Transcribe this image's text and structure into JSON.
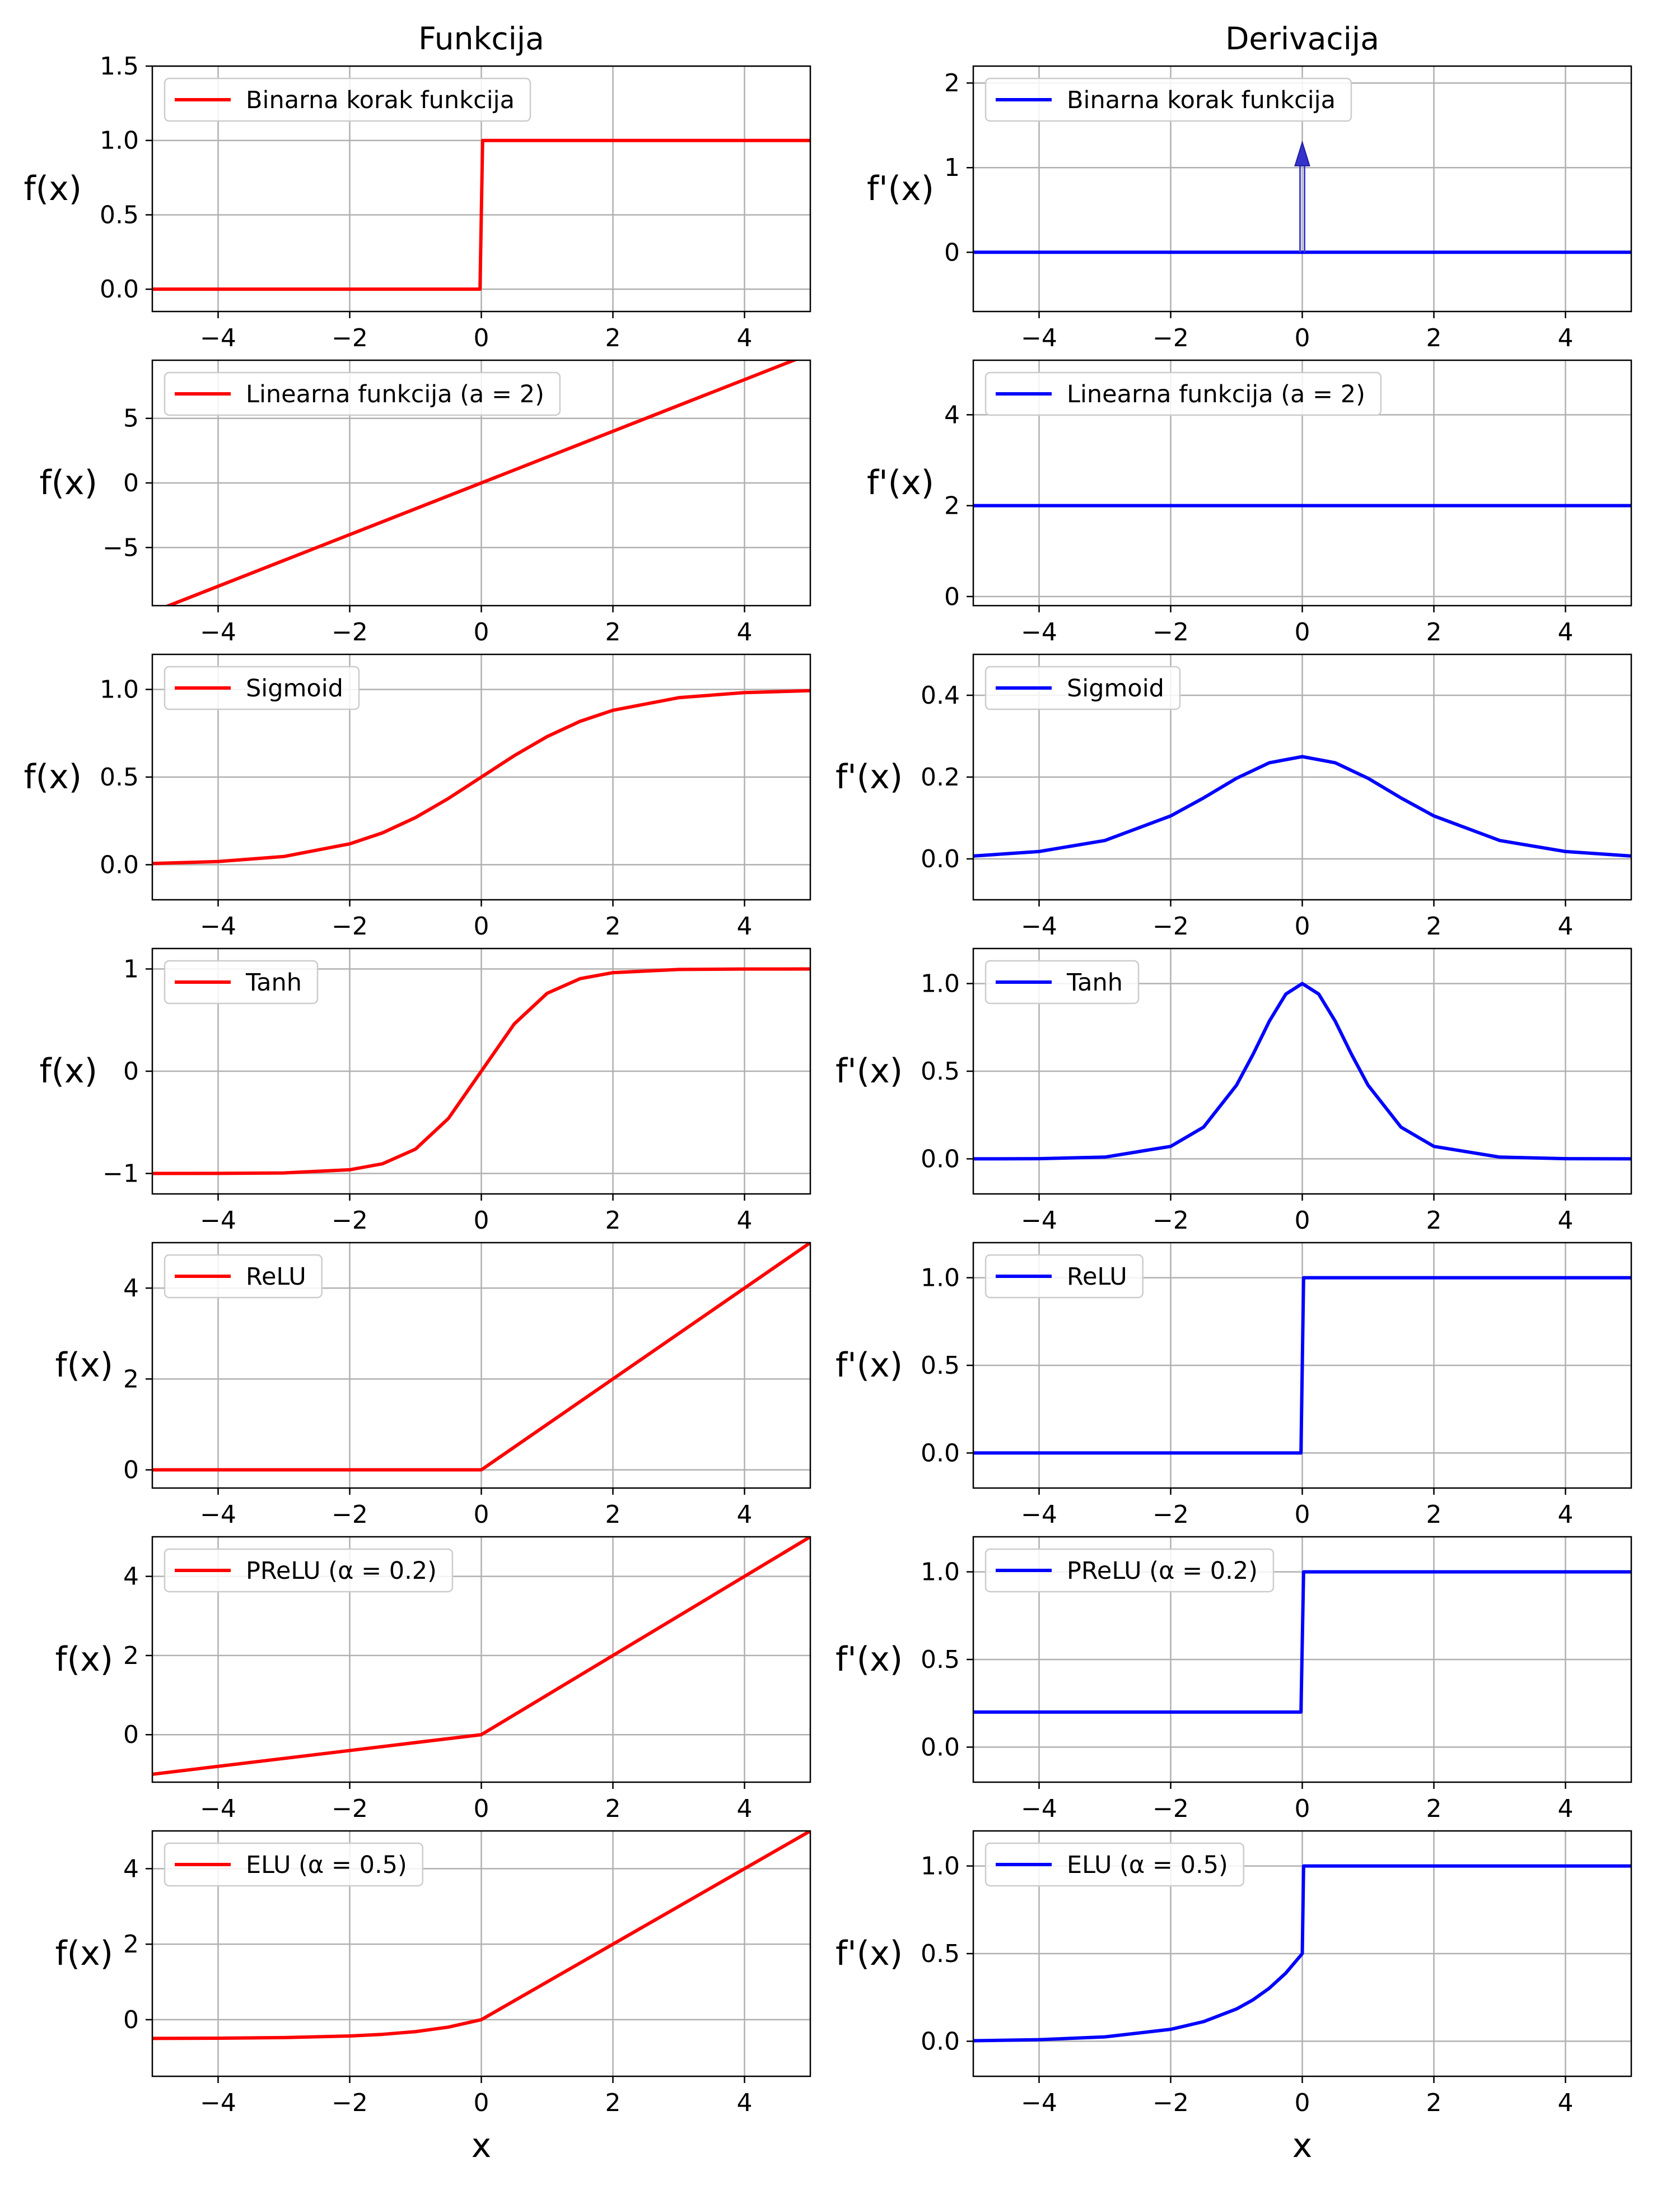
{
  "column_titles": [
    "Funkcija",
    "Derivacija"
  ],
  "ylabels": [
    "f(x)",
    "f'(x)"
  ],
  "xlabel": "x",
  "colors": {
    "function": "#ff0000",
    "derivative": "#0000ff",
    "grid": "#b0b0b0"
  },
  "chart_data": [
    {
      "type": "line",
      "column": "Funkcija",
      "name": "Binarna korak funkcija",
      "xlim": [
        -5,
        5
      ],
      "ylim": [
        -0.15,
        1.5
      ],
      "yticks": [
        0.0,
        0.5,
        1.0,
        1.5
      ],
      "ytick_labels": [
        "0.0",
        "0.5",
        "1.0",
        "1.5"
      ],
      "grid": true,
      "legend": "upper left",
      "series": [
        {
          "name": "Binarna korak funkcija",
          "x": [
            -5,
            -0.02,
            0.02,
            5
          ],
          "y": [
            0,
            0,
            1,
            1
          ]
        }
      ]
    },
    {
      "type": "line",
      "column": "Derivacija",
      "name": "Binarna korak funkcija",
      "xlim": [
        -5,
        5
      ],
      "ylim": [
        -0.7,
        2.2
      ],
      "yticks": [
        0,
        1,
        2
      ],
      "ytick_labels": [
        "0",
        "1",
        "2"
      ],
      "grid": true,
      "legend": "upper left",
      "arrow": {
        "x": 0,
        "from": 0,
        "to": 1.3
      },
      "series": [
        {
          "name": "Binarna korak funkcija",
          "x": [
            -5,
            5
          ],
          "y": [
            0,
            0
          ]
        }
      ]
    },
    {
      "type": "line",
      "column": "Funkcija",
      "name": "Linearna funkcija (a = 2)",
      "xlim": [
        -5,
        5
      ],
      "ylim": [
        -9.5,
        9.5
      ],
      "yticks": [
        -5,
        0,
        5
      ],
      "ytick_labels": [
        "−5",
        "0",
        "5"
      ],
      "grid": true,
      "legend": "upper left",
      "series": [
        {
          "name": "Linearna funkcija (a = 2)",
          "x": [
            -5,
            5
          ],
          "y": [
            -10,
            10
          ]
        }
      ]
    },
    {
      "type": "line",
      "column": "Derivacija",
      "name": "Linearna funkcija (a = 2)",
      "xlim": [
        -5,
        5
      ],
      "ylim": [
        -0.2,
        5.2
      ],
      "yticks": [
        0,
        2,
        4
      ],
      "ytick_labels": [
        "0",
        "2",
        "4"
      ],
      "grid": true,
      "legend": "upper left",
      "series": [
        {
          "name": "Linearna funkcija (a = 2)",
          "x": [
            -5,
            5
          ],
          "y": [
            2,
            2
          ]
        }
      ]
    },
    {
      "type": "line",
      "column": "Funkcija",
      "name": "Sigmoid",
      "xlim": [
        -5,
        5
      ],
      "ylim": [
        -0.2,
        1.2
      ],
      "yticks": [
        0.0,
        0.5,
        1.0
      ],
      "ytick_labels": [
        "0.0",
        "0.5",
        "1.0"
      ],
      "grid": true,
      "legend": "upper left",
      "series": [
        {
          "name": "Sigmoid",
          "x": [
            -5,
            -4,
            -3,
            -2,
            -1.5,
            -1,
            -0.5,
            0,
            0.5,
            1,
            1.5,
            2,
            3,
            4,
            5
          ],
          "y": [
            0.007,
            0.018,
            0.047,
            0.119,
            0.182,
            0.269,
            0.378,
            0.5,
            0.622,
            0.731,
            0.818,
            0.881,
            0.953,
            0.982,
            0.993
          ]
        }
      ]
    },
    {
      "type": "line",
      "column": "Derivacija",
      "name": "Sigmoid",
      "xlim": [
        -5,
        5
      ],
      "ylim": [
        -0.1,
        0.5
      ],
      "yticks": [
        0.0,
        0.2,
        0.4
      ],
      "ytick_labels": [
        "0.0",
        "0.2",
        "0.4"
      ],
      "grid": true,
      "legend": "upper left",
      "series": [
        {
          "name": "Sigmoid",
          "x": [
            -5,
            -4,
            -3,
            -2,
            -1.5,
            -1,
            -0.5,
            0,
            0.5,
            1,
            1.5,
            2,
            3,
            4,
            5
          ],
          "y": [
            0.007,
            0.018,
            0.045,
            0.105,
            0.149,
            0.197,
            0.235,
            0.25,
            0.235,
            0.197,
            0.149,
            0.105,
            0.045,
            0.018,
            0.007
          ]
        }
      ]
    },
    {
      "type": "line",
      "column": "Funkcija",
      "name": "Tanh",
      "xlim": [
        -5,
        5
      ],
      "ylim": [
        -1.2,
        1.2
      ],
      "yticks": [
        -1,
        0,
        1
      ],
      "ytick_labels": [
        "−1",
        "0",
        "1"
      ],
      "grid": true,
      "legend": "upper left",
      "series": [
        {
          "name": "Tanh",
          "x": [
            -5,
            -4,
            -3,
            -2,
            -1.5,
            -1,
            -0.5,
            0,
            0.5,
            1,
            1.5,
            2,
            3,
            4,
            5
          ],
          "y": [
            -1.0,
            -0.999,
            -0.995,
            -0.964,
            -0.905,
            -0.762,
            -0.462,
            0,
            0.462,
            0.762,
            0.905,
            0.964,
            0.995,
            0.999,
            1.0
          ]
        }
      ]
    },
    {
      "type": "line",
      "column": "Derivacija",
      "name": "Tanh",
      "xlim": [
        -5,
        5
      ],
      "ylim": [
        -0.2,
        1.2
      ],
      "yticks": [
        0.0,
        0.5,
        1.0
      ],
      "ytick_labels": [
        "0.0",
        "0.5",
        "1.0"
      ],
      "grid": true,
      "legend": "upper left",
      "series": [
        {
          "name": "Tanh",
          "x": [
            -5,
            -4,
            -3,
            -2,
            -1.5,
            -1,
            -0.75,
            -0.5,
            -0.25,
            0,
            0.25,
            0.5,
            0.75,
            1,
            1.5,
            2,
            3,
            4,
            5
          ],
          "y": [
            0.0,
            0.001,
            0.01,
            0.071,
            0.181,
            0.42,
            0.595,
            0.786,
            0.94,
            1.0,
            0.94,
            0.786,
            0.595,
            0.42,
            0.181,
            0.071,
            0.01,
            0.001,
            0.0
          ]
        }
      ]
    },
    {
      "type": "line",
      "column": "Funkcija",
      "name": "ReLU",
      "xlim": [
        -5,
        5
      ],
      "ylim": [
        -0.4,
        5.0
      ],
      "yticks": [
        0,
        2,
        4
      ],
      "ytick_labels": [
        "0",
        "2",
        "4"
      ],
      "grid": true,
      "legend": "upper left",
      "series": [
        {
          "name": "ReLU",
          "x": [
            -5,
            0,
            5
          ],
          "y": [
            0,
            0,
            5
          ]
        }
      ]
    },
    {
      "type": "line",
      "column": "Derivacija",
      "name": "ReLU",
      "xlim": [
        -5,
        5
      ],
      "ylim": [
        -0.2,
        1.2
      ],
      "yticks": [
        0.0,
        0.5,
        1.0
      ],
      "ytick_labels": [
        "0.0",
        "0.5",
        "1.0"
      ],
      "grid": true,
      "legend": "upper left",
      "series": [
        {
          "name": "ReLU",
          "x": [
            -5,
            -0.02,
            0.02,
            5
          ],
          "y": [
            0,
            0,
            1,
            1
          ]
        }
      ]
    },
    {
      "type": "line",
      "column": "Funkcija",
      "name": "PReLU (α = 0.2)",
      "xlim": [
        -5,
        5
      ],
      "ylim": [
        -1.2,
        5.0
      ],
      "yticks": [
        0,
        2,
        4
      ],
      "ytick_labels": [
        "0",
        "2",
        "4"
      ],
      "grid": true,
      "legend": "upper left",
      "series": [
        {
          "name": "PReLU (α = 0.2)",
          "x": [
            -5,
            0,
            5
          ],
          "y": [
            -1,
            0,
            5
          ]
        }
      ]
    },
    {
      "type": "line",
      "column": "Derivacija",
      "name": "PReLU (α = 0.2)",
      "xlim": [
        -5,
        5
      ],
      "ylim": [
        -0.2,
        1.2
      ],
      "yticks": [
        0.0,
        0.5,
        1.0
      ],
      "ytick_labels": [
        "0.0",
        "0.5",
        "1.0"
      ],
      "grid": true,
      "legend": "upper left",
      "series": [
        {
          "name": "PReLU (α = 0.2)",
          "x": [
            -5,
            -0.02,
            0.02,
            5
          ],
          "y": [
            0.2,
            0.2,
            1,
            1
          ]
        }
      ]
    },
    {
      "type": "line",
      "column": "Funkcija",
      "name": "ELU (α = 0.5)",
      "xlim": [
        -5,
        5
      ],
      "ylim": [
        -1.5,
        5.0
      ],
      "yticks": [
        0,
        2,
        4
      ],
      "ytick_labels": [
        "0",
        "2",
        "4"
      ],
      "grid": true,
      "legend": "upper left",
      "series": [
        {
          "name": "ELU (α = 0.5)",
          "x": [
            -5,
            -4,
            -3,
            -2,
            -1.5,
            -1,
            -0.5,
            0,
            5
          ],
          "y": [
            -0.497,
            -0.491,
            -0.475,
            -0.432,
            -0.388,
            -0.316,
            -0.197,
            0,
            5
          ]
        }
      ]
    },
    {
      "type": "line",
      "column": "Derivacija",
      "name": "ELU (α = 0.5)",
      "xlim": [
        -5,
        5
      ],
      "ylim": [
        -0.2,
        1.2
      ],
      "yticks": [
        0.0,
        0.5,
        1.0
      ],
      "ytick_labels": [
        "0.0",
        "0.5",
        "1.0"
      ],
      "grid": true,
      "legend": "upper left",
      "series": [
        {
          "name": "ELU (α = 0.5)",
          "x": [
            -5,
            -4,
            -3,
            -2,
            -1.5,
            -1,
            -0.75,
            -0.5,
            -0.25,
            0,
            0.02,
            5
          ],
          "y": [
            0.003,
            0.009,
            0.025,
            0.068,
            0.112,
            0.184,
            0.236,
            0.303,
            0.389,
            0.5,
            1,
            1
          ]
        }
      ]
    }
  ]
}
